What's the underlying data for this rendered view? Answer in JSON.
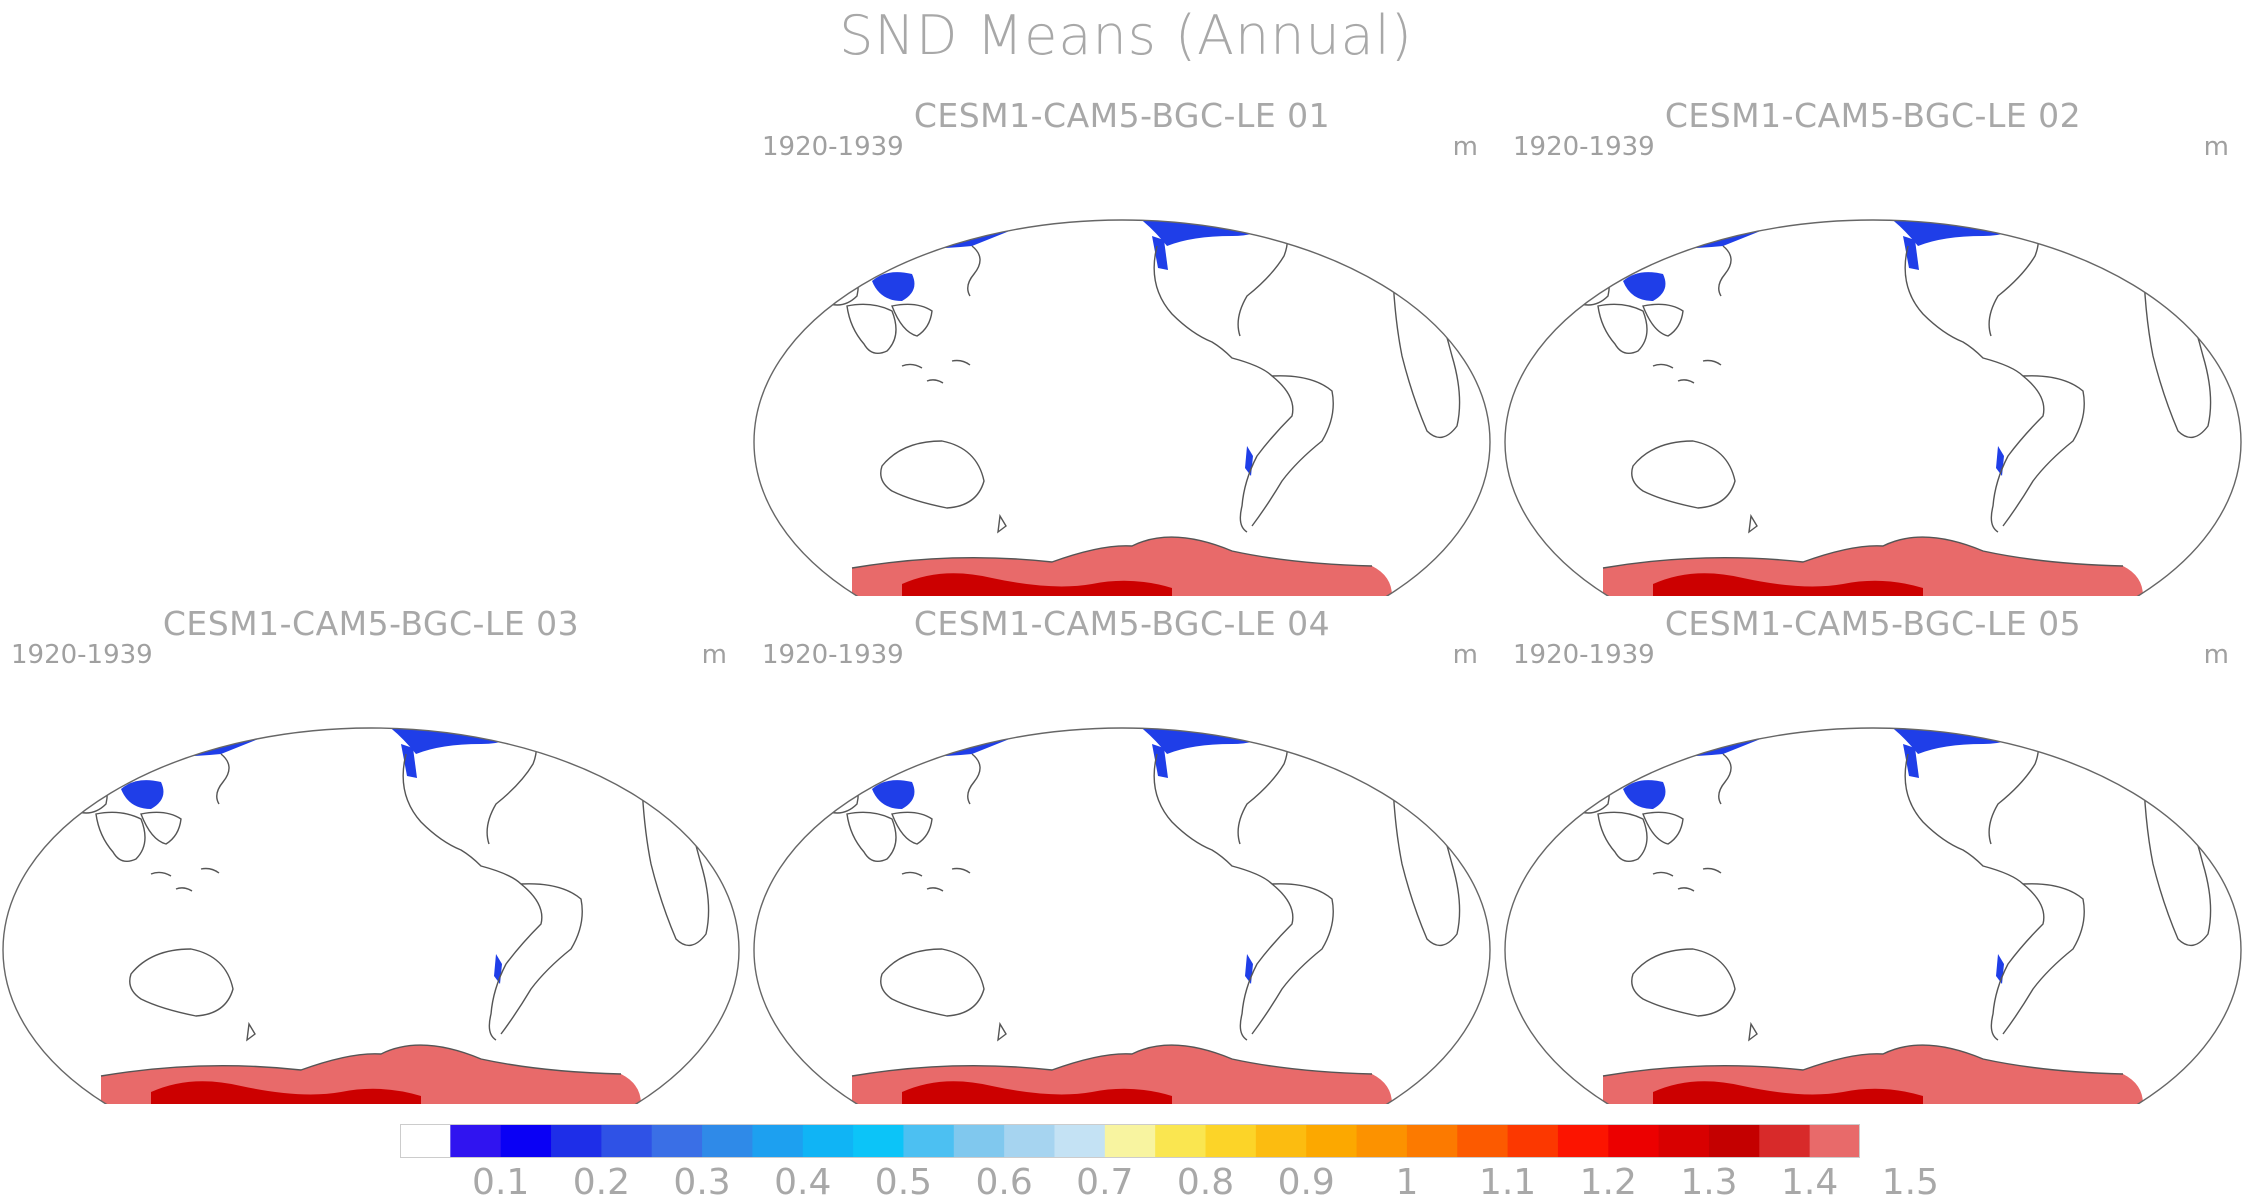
{
  "figure": {
    "title": "SND Means (Annual)",
    "panels": [
      {
        "id": "p1",
        "title": "CESM1-CAM5-BGC-LE 01",
        "period": "1920-1939",
        "unit": "m"
      },
      {
        "id": "p2",
        "title": "CESM1-CAM5-BGC-LE 02",
        "period": "1920-1939",
        "unit": "m"
      },
      {
        "id": "p3",
        "title": "CESM1-CAM5-BGC-LE 03",
        "period": "1920-1939",
        "unit": "m"
      },
      {
        "id": "p4",
        "title": "CESM1-CAM5-BGC-LE 04",
        "period": "1920-1939",
        "unit": "m"
      },
      {
        "id": "p5",
        "title": "CESM1-CAM5-BGC-LE 05",
        "period": "1920-1939",
        "unit": "m"
      }
    ]
  },
  "colorbar": {
    "colors": [
      "#ffffff",
      "#3014f0",
      "#0a00f5",
      "#1e2ee8",
      "#2f52e6",
      "#3a6fe6",
      "#2f8ae8",
      "#1da0f0",
      "#10b4f5",
      "#0cc4f8",
      "#4cc0f2",
      "#80c8ee",
      "#a6d4f0",
      "#c4e2f4",
      "#f8f4a0",
      "#fae650",
      "#fcd428",
      "#fcbc10",
      "#fca800",
      "#fc9200",
      "#fc7a00",
      "#fc5a00",
      "#fc3800",
      "#fc1400",
      "#ec0000",
      "#d80000",
      "#c40000",
      "#d82a2a",
      "#e86a6a"
    ],
    "labels": [
      "0.1",
      "0.2",
      "0.3",
      "0.4",
      "0.5",
      "0.6",
      "0.7",
      "0.8",
      "0.9",
      "1",
      "1.1",
      "1.2",
      "1.3",
      "1.4",
      "1.5"
    ]
  },
  "legend_colors": {
    "land_outline": "#555555",
    "deep_snow": "#e86a6a",
    "max_snow": "#cc0000",
    "low_snow": "#1f3ee8",
    "mid_snow": "#2fa0f0"
  }
}
